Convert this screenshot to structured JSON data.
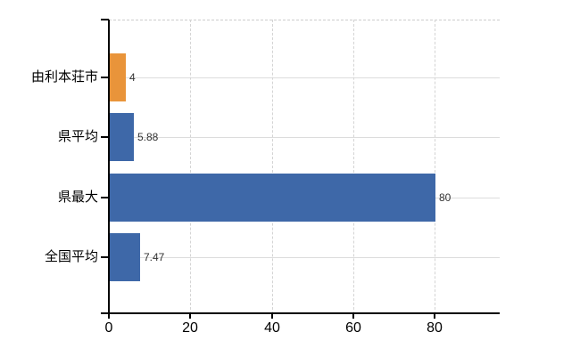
{
  "chart_data": {
    "type": "bar",
    "orientation": "horizontal",
    "title": "",
    "categories": [
      "由利本荘市",
      "県平均",
      "県最大",
      "全国平均"
    ],
    "values": [
      4,
      5.88,
      80,
      7.47
    ],
    "value_labels": [
      "4",
      "5.88",
      "80",
      "7.47"
    ],
    "series": [
      {
        "name": "value",
        "values": [
          4,
          5.88,
          80,
          7.47
        ]
      }
    ],
    "bar_colors": [
      "#e9943a",
      "#3e68a8",
      "#3e68a8",
      "#3e68a8"
    ],
    "x_ticks": [
      0,
      20,
      40,
      60,
      80
    ],
    "x_tick_labels": [
      "0",
      "20",
      "40",
      "60",
      "80"
    ],
    "xlim": [
      0,
      96
    ],
    "grid": true,
    "legend": false,
    "colors": {
      "axis": "#000000",
      "h_gridline": "#dcdcdc",
      "v_gridline": "#d4d4d4",
      "top_border": "#cccccc",
      "category_label": "#000000",
      "value_label": "#333333",
      "background": "#ffffff"
    }
  }
}
